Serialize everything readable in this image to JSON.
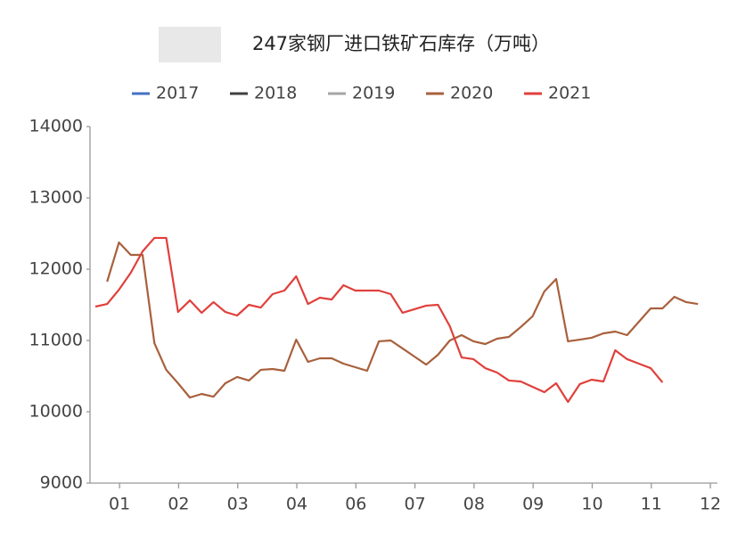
{
  "chart_data": {
    "type": "line",
    "title": "247家钢厂进口铁矿石库存（万吨）",
    "x": [
      0.59,
      0.79,
      0.99,
      1.19,
      1.39,
      1.59,
      1.79,
      1.99,
      2.19,
      2.39,
      2.59,
      2.79,
      2.99,
      3.19,
      3.39,
      3.59,
      3.79,
      3.99,
      4.19,
      4.39,
      4.59,
      4.79,
      4.99,
      5.19,
      5.39,
      5.59,
      5.79,
      5.99,
      6.19,
      6.39,
      6.59,
      6.79,
      6.99,
      7.19,
      7.39,
      7.59,
      7.79,
      7.99,
      8.19,
      8.39,
      8.59,
      8.79,
      8.99,
      9.19,
      9.39,
      9.59,
      9.79,
      9.99,
      10.19,
      10.39,
      10.59,
      10.79
    ],
    "series": [
      {
        "name": "2017",
        "color": "#4472c4",
        "values": [
          null,
          null,
          null,
          null,
          null,
          null,
          null,
          null,
          null,
          null,
          null,
          null,
          null,
          null,
          null,
          null,
          null,
          null,
          null,
          null,
          null,
          null,
          null,
          null,
          null,
          null,
          null,
          null,
          null,
          null,
          null,
          null,
          null,
          null,
          null,
          null,
          null,
          null,
          null,
          null,
          null,
          null,
          null,
          null,
          null,
          null,
          null,
          null,
          null,
          null,
          null,
          null
        ]
      },
      {
        "name": "2018",
        "color": "#404040",
        "values": [
          null,
          null,
          null,
          null,
          null,
          null,
          null,
          null,
          null,
          null,
          null,
          null,
          null,
          null,
          null,
          null,
          null,
          null,
          null,
          null,
          null,
          null,
          null,
          null,
          null,
          null,
          null,
          null,
          null,
          null,
          null,
          null,
          null,
          null,
          null,
          null,
          null,
          null,
          null,
          null,
          null,
          null,
          null,
          null,
          null,
          null,
          null,
          null,
          null,
          null,
          null,
          null
        ]
      },
      {
        "name": "2019",
        "color": "#a5a5a5",
        "values": [
          null,
          null,
          null,
          null,
          null,
          null,
          null,
          null,
          null,
          null,
          null,
          null,
          null,
          null,
          null,
          null,
          null,
          null,
          null,
          null,
          null,
          null,
          null,
          null,
          null,
          null,
          null,
          null,
          null,
          null,
          null,
          null,
          null,
          null,
          null,
          null,
          null,
          null,
          null,
          null,
          null,
          null,
          null,
          null,
          null,
          null,
          null,
          null,
          null,
          null,
          null,
          null
        ]
      },
      {
        "name": "2020",
        "color": "#a8603c",
        "values": [
          null,
          11825,
          12375,
          12200,
          12200,
          10962,
          10588,
          10400,
          10200,
          10250,
          10212,
          10400,
          10488,
          10438,
          10588,
          10600,
          10575,
          11012,
          10700,
          10750,
          10750,
          10675,
          10625,
          10575,
          10988,
          11000,
          10888,
          10775,
          10662,
          10800,
          11000,
          11075,
          10988,
          10950,
          11025,
          11050,
          11188,
          11338,
          11688,
          11862,
          10988,
          11012,
          11038,
          11100,
          11125,
          11075,
          11262,
          11450,
          11450,
          11612,
          11538,
          11512
        ]
      },
      {
        "name": "2021",
        "color": "#e0403c",
        "values": [
          11475,
          11512,
          11712,
          11950,
          12250,
          12438,
          12438,
          11400,
          11562,
          11388,
          11538,
          11400,
          11350,
          11500,
          11462,
          11650,
          11700,
          11900,
          11512,
          11600,
          11575,
          11775,
          11700,
          11700,
          11700,
          11650,
          11388,
          11438,
          11488,
          11500,
          11200,
          10762,
          10738,
          10612,
          10550,
          10438,
          10425,
          10350,
          10275,
          10400,
          10138,
          10388,
          10450,
          10425,
          10862,
          10738,
          10675,
          10612,
          10412,
          null,
          null,
          null
        ]
      }
    ],
    "xlim": [
      0.5,
      11.12
    ],
    "xticks": [
      {
        "value": 1,
        "label": "01"
      },
      {
        "value": 2,
        "label": "02"
      },
      {
        "value": 3,
        "label": "03"
      },
      {
        "value": 4,
        "label": "04"
      },
      {
        "value": 5,
        "label": "06"
      },
      {
        "value": 6,
        "label": "07"
      },
      {
        "value": 7,
        "label": "08"
      },
      {
        "value": 8,
        "label": "09"
      },
      {
        "value": 9,
        "label": "10"
      },
      {
        "value": 10,
        "label": "11"
      },
      {
        "value": 11,
        "label": "12"
      }
    ],
    "ylim": [
      9000,
      14000
    ],
    "yticks": [
      9000,
      10000,
      11000,
      12000,
      13000,
      14000
    ],
    "grid": false,
    "legend": "top"
  }
}
